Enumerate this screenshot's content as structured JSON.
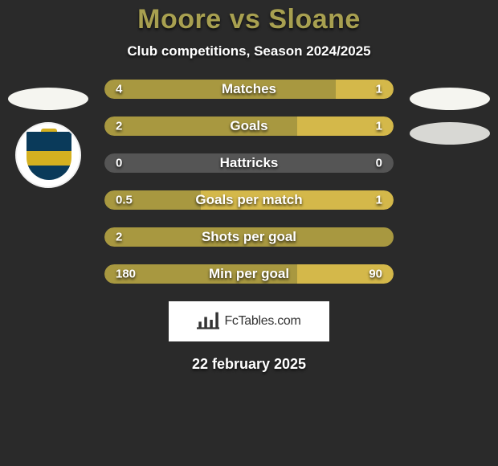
{
  "title": "Moore vs Sloane",
  "subtitle": "Club competitions, Season 2024/2025",
  "date": "22 february 2025",
  "fctables_label": "FcTables.com",
  "colors": {
    "background": "#2a2a2a",
    "title_color": "#a8a050",
    "left_player": "#a89840",
    "right_player": "#d4b84a",
    "neutral": "#555555",
    "ellipse_light": "#f5f5f0",
    "ellipse_dark": "#d8d8d4"
  },
  "bars": [
    {
      "label": "Matches",
      "left_val": "4",
      "right_val": "1",
      "left_pct": 80,
      "right_pct": 20,
      "left_color": "#a89840",
      "right_color": "#d4b84a"
    },
    {
      "label": "Goals",
      "left_val": "2",
      "right_val": "1",
      "left_pct": 66.7,
      "right_pct": 33.3,
      "left_color": "#a89840",
      "right_color": "#d4b84a"
    },
    {
      "label": "Hattricks",
      "left_val": "0",
      "right_val": "0",
      "left_pct": 50,
      "right_pct": 50,
      "left_color": "#555555",
      "right_color": "#555555"
    },
    {
      "label": "Goals per match",
      "left_val": "0.5",
      "right_val": "1",
      "left_pct": 33.3,
      "right_pct": 66.7,
      "left_color": "#a89840",
      "right_color": "#d4b84a"
    },
    {
      "label": "Shots per goal",
      "left_val": "2",
      "right_val": "",
      "left_pct": 100,
      "right_pct": 0,
      "left_color": "#a89840",
      "right_color": "#d4b84a"
    },
    {
      "label": "Min per goal",
      "left_val": "180",
      "right_val": "90",
      "left_pct": 66.7,
      "right_pct": 33.3,
      "left_color": "#a89840",
      "right_color": "#d4b84a"
    }
  ]
}
